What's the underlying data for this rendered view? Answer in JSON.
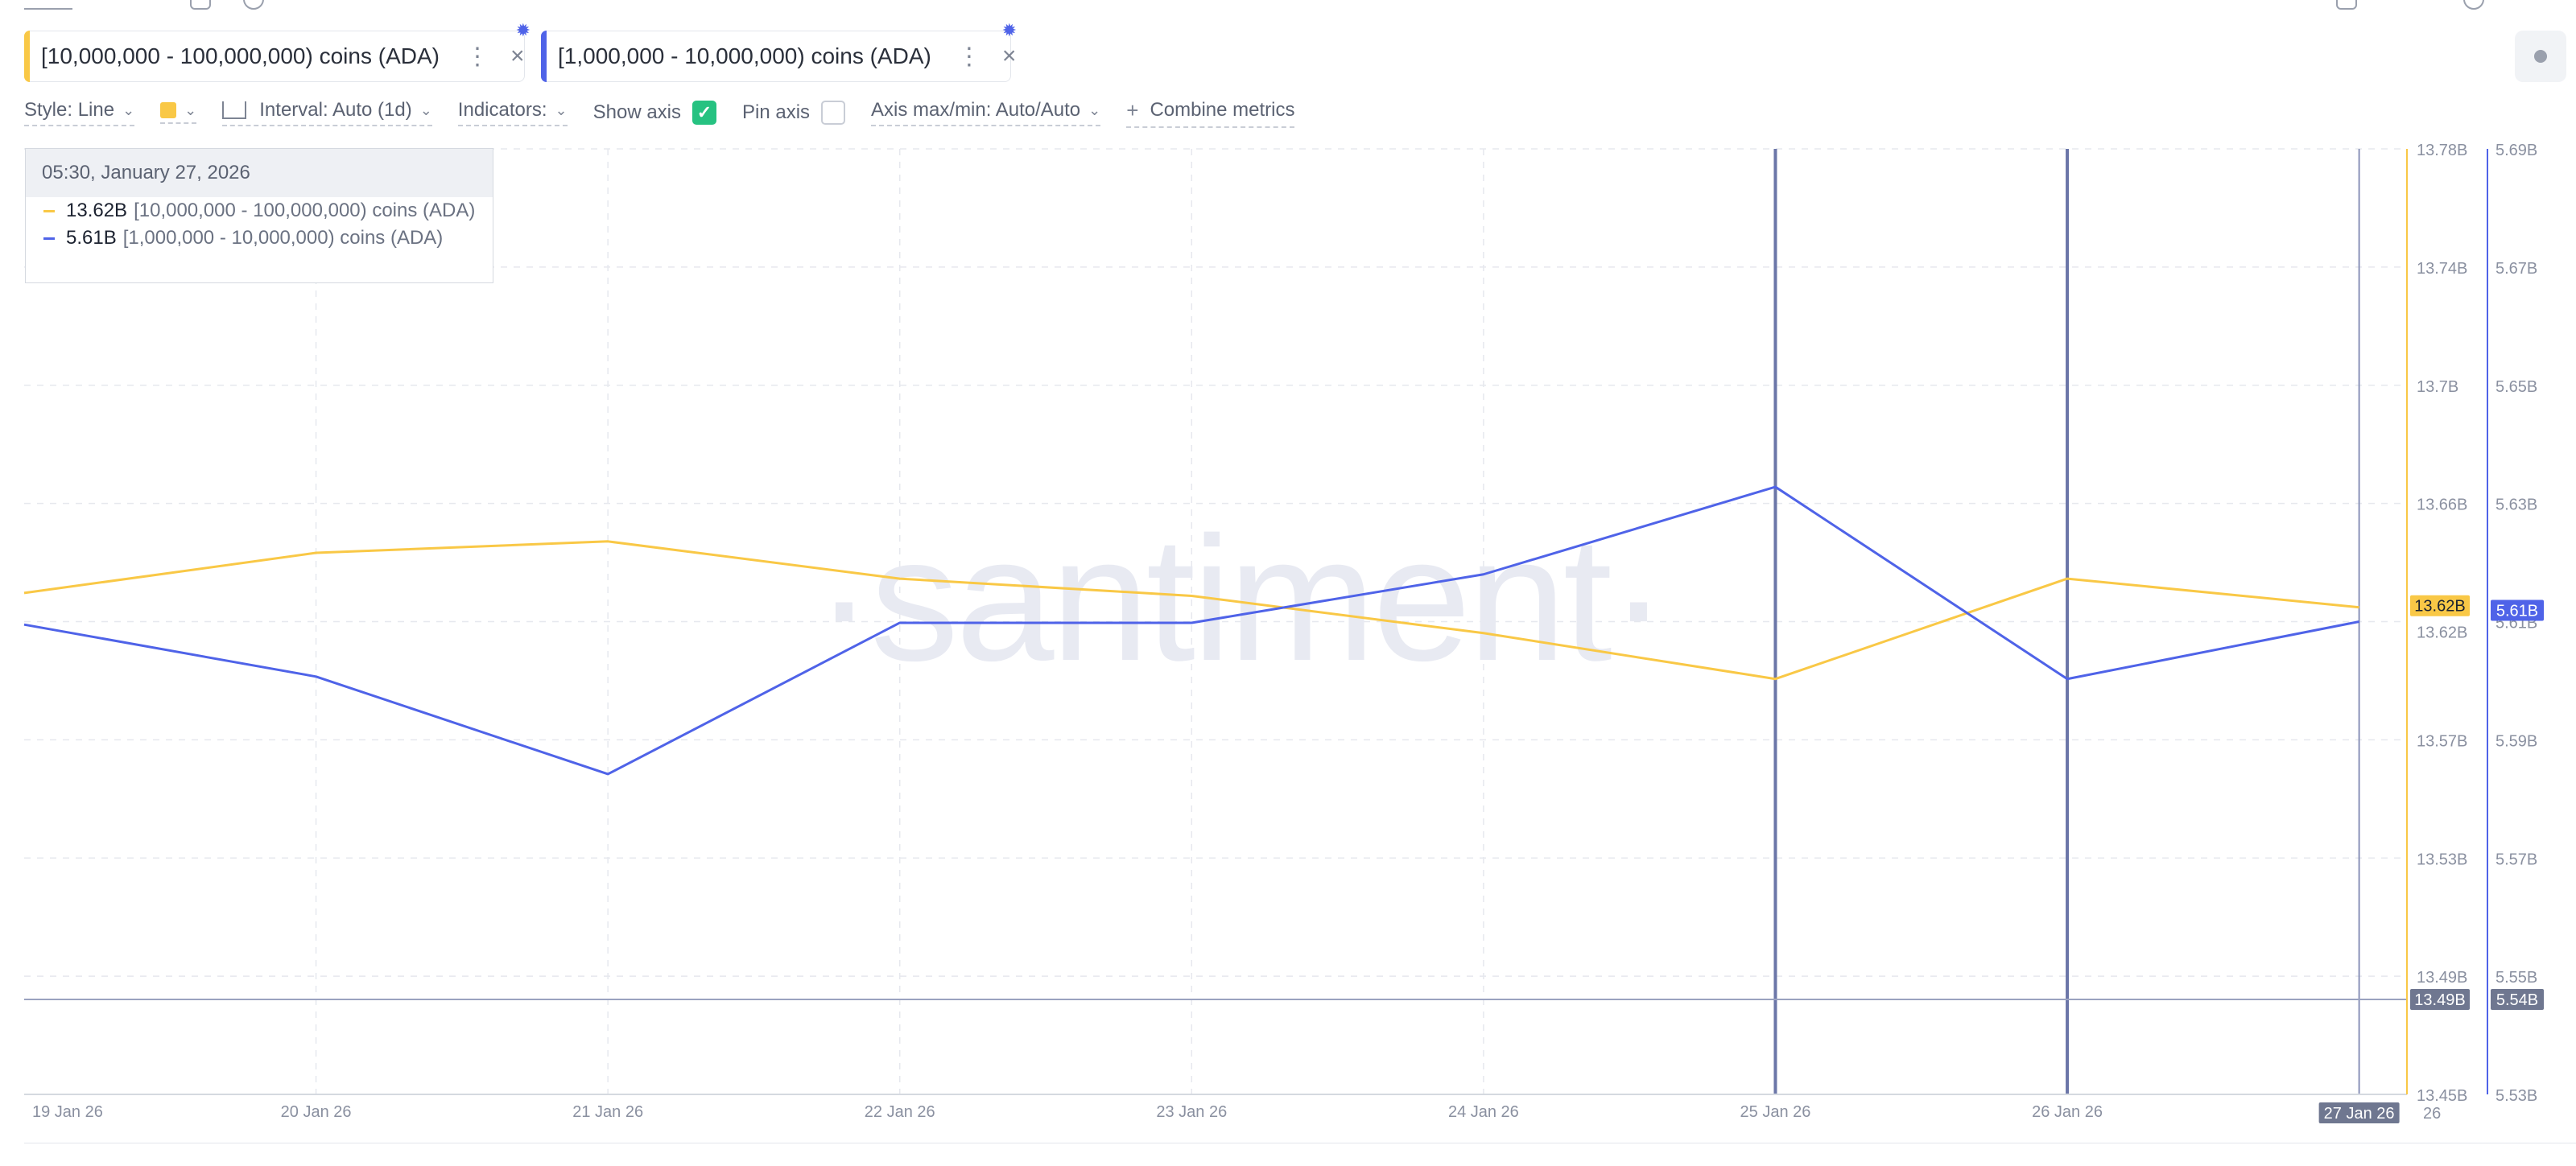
{
  "metrics": [
    {
      "label": "[10,000,000 - 100,000,000) coins (ADA)",
      "color": "#f9c846"
    },
    {
      "label": "[1,000,000 - 10,000,000) coins (ADA)",
      "color": "#4f63e8"
    }
  ],
  "settings": {
    "style": "Style: Line",
    "interval": "Interval: Auto (1d)",
    "indicators": "Indicators:",
    "show_axis": "Show axis",
    "show_axis_checked": true,
    "pin_axis": "Pin axis",
    "pin_axis_checked": false,
    "axis_maxmin": "Axis max/min: Auto/Auto",
    "combine": "Combine metrics"
  },
  "tooltip": {
    "date": "05:30, January 27, 2026",
    "rows": [
      {
        "value": "13.62B",
        "name": "[10,000,000 - 100,000,000) coins (ADA)",
        "color": "#f9c846"
      },
      {
        "value": "5.61B",
        "name": "[1,000,000 - 10,000,000) coins (ADA)",
        "color": "#4f63e8"
      }
    ]
  },
  "watermark": "·santiment·",
  "chart_data": {
    "type": "line",
    "x": [
      "19 Jan 26",
      "20 Jan 26",
      "21 Jan 26",
      "22 Jan 26",
      "23 Jan 26",
      "24 Jan 26",
      "25 Jan 26",
      "26 Jan 26",
      "27 Jan 26"
    ],
    "series": [
      {
        "name": "[10,000,000 - 100,000,000) coins (ADA)",
        "axis": "left",
        "color": "#f9c846",
        "values": [
          13.625,
          13.639,
          13.643,
          13.63,
          13.624,
          13.611,
          13.595,
          13.63,
          13.62
        ]
      },
      {
        "name": "[1,000,000 - 10,000,000) coins (ADA)",
        "axis": "right",
        "color": "#4f63e8",
        "values": [
          5.6095,
          5.6007,
          5.5842,
          5.6098,
          5.6098,
          5.618,
          5.6328,
          5.6003,
          5.61
        ]
      }
    ],
    "y_left": {
      "ticks": [
        "13.45B",
        "13.49B",
        "13.53B",
        "13.57B",
        "13.62B",
        "13.66B",
        "13.7B",
        "13.74B",
        "13.78B"
      ],
      "range": [
        13.45,
        13.78
      ]
    },
    "y_right": {
      "ticks": [
        "5.53B",
        "5.55B",
        "5.57B",
        "5.59B",
        "5.61B",
        "5.63B",
        "5.65B",
        "5.67B",
        "5.69B"
      ],
      "range": [
        5.53,
        5.69
      ]
    },
    "axis_labels": {
      "left_current": "13.62B",
      "right_current": "5.61B",
      "left_cursor": "13.49B",
      "right_cursor": "5.54B",
      "x_cursor": "27 Jan 26",
      "x_partial": "26"
    },
    "grid": true
  }
}
